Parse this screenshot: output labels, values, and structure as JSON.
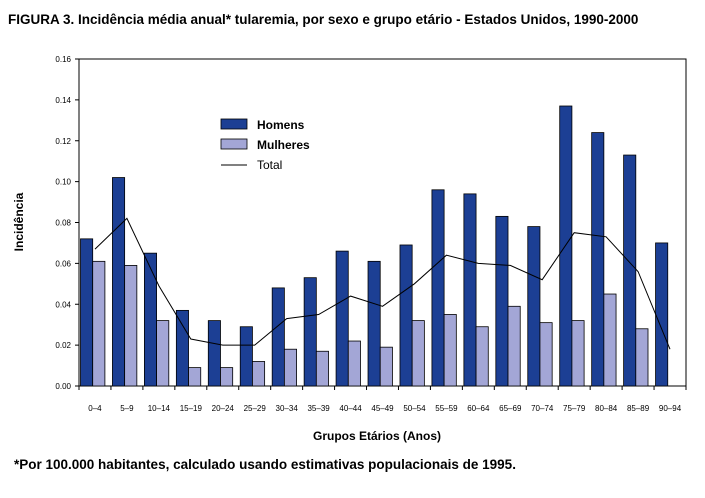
{
  "title": "FIGURA 3. Incidência média anual* tularemia, por sexo e grupo etário - Estados Unidos, 1990-2000",
  "footnote": "*Por 100.000 habitantes, calculado usando estimativas populacionais de 1995.",
  "colors": {
    "homens": "#1c3f94",
    "mulheres": "#a3a6d6",
    "total": "#000000",
    "bar_stroke": "#000000"
  },
  "chart_data": {
    "type": "bar",
    "xlabel": "Grupos Etários (Anos)",
    "ylabel": "Incidência",
    "ylim": [
      0,
      0.16
    ],
    "yticks": [
      "0.00",
      "0.02",
      "0.04",
      "0.06",
      "0.08",
      "0.10",
      "0.12",
      "0.14",
      "0.16"
    ],
    "categories": [
      "0–4",
      "5–9",
      "10–14",
      "15–19",
      "20–24",
      "25–29",
      "30–34",
      "35–39",
      "40–44",
      "45–49",
      "50–54",
      "55–59",
      "60–64",
      "65–69",
      "70–74",
      "75–79",
      "80–84",
      "85–89",
      "90–94"
    ],
    "legend_position": "upper-left",
    "series": [
      {
        "name": "Homens",
        "kind": "bar",
        "color": "#1c3f94",
        "values": [
          0.072,
          0.102,
          0.065,
          0.037,
          0.032,
          0.029,
          0.048,
          0.053,
          0.066,
          0.061,
          0.069,
          0.096,
          0.094,
          0.083,
          0.078,
          0.137,
          0.124,
          0.113,
          0.07
        ]
      },
      {
        "name": "Mulheres",
        "kind": "bar",
        "color": "#a3a6d6",
        "values": [
          0.061,
          0.059,
          0.032,
          0.009,
          0.009,
          0.012,
          0.018,
          0.017,
          0.022,
          0.019,
          0.032,
          0.035,
          0.029,
          0.039,
          0.031,
          0.032,
          0.045,
          0.028,
          0.0
        ]
      },
      {
        "name": "Total",
        "kind": "line",
        "color": "#000000",
        "values": [
          0.067,
          0.082,
          0.049,
          0.023,
          0.02,
          0.02,
          0.033,
          0.035,
          0.044,
          0.039,
          0.05,
          0.064,
          0.06,
          0.059,
          0.052,
          0.075,
          0.073,
          0.056,
          0.018
        ]
      }
    ]
  }
}
